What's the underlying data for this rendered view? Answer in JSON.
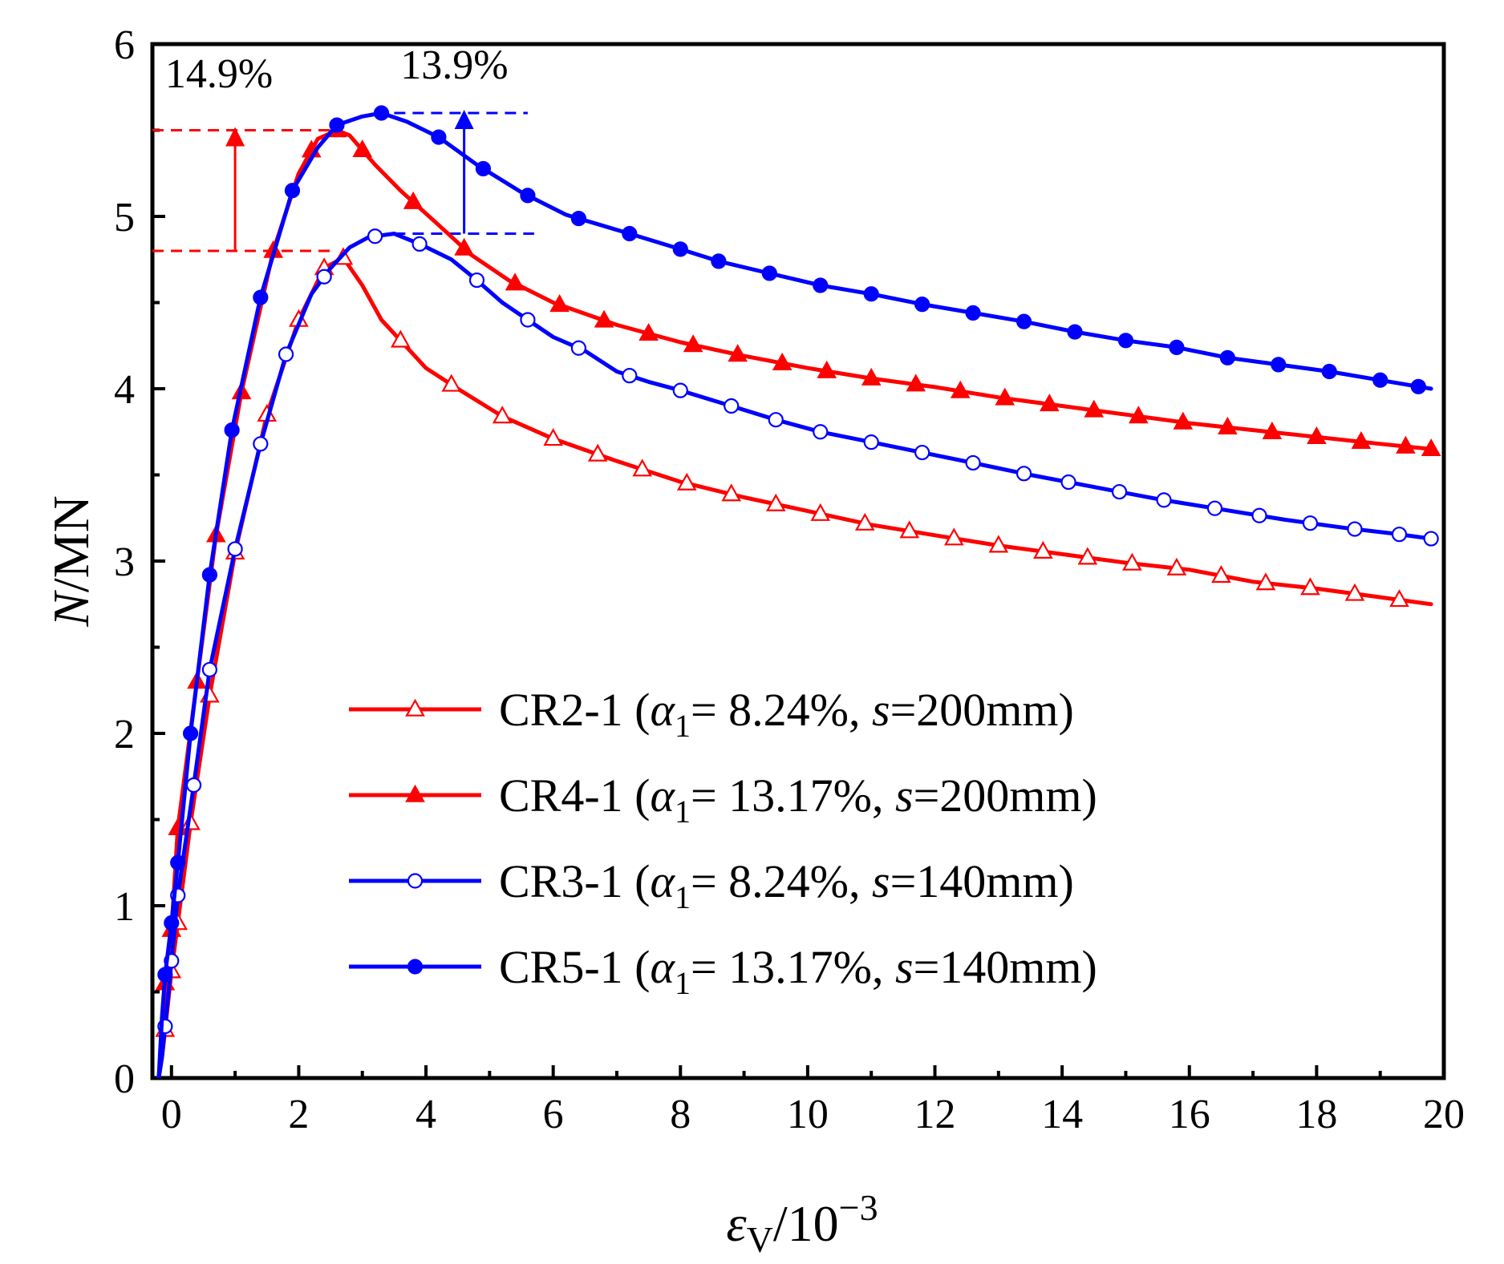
{
  "chart_data": {
    "type": "line",
    "title": "",
    "xlabel": {
      "symbol": "ε",
      "sub": "V",
      "rest": "/10",
      "sup": "−3"
    },
    "ylabel": {
      "symbol": "N",
      "rest": "/MN"
    },
    "xlim": [
      -0.3,
      20
    ],
    "ylim": [
      0,
      6
    ],
    "xticks": [
      0,
      2,
      4,
      6,
      8,
      10,
      12,
      14,
      16,
      18,
      20
    ],
    "yticks": [
      0,
      1,
      2,
      3,
      4,
      5,
      6
    ],
    "legend_position": "center-left",
    "series": [
      {
        "name": "CR2-1",
        "legend": {
          "id": "CR2-1",
          "alpha_val": "= 8.24%,",
          "s_val": "=200mm)"
        },
        "color": "#ff0000",
        "marker": "triangle",
        "filled": false,
        "points": [
          [
            -0.2,
            0
          ],
          [
            -0.15,
            0.12
          ],
          [
            -0.1,
            0.28
          ],
          [
            -0.05,
            0.45
          ],
          [
            0,
            0.62
          ],
          [
            0.1,
            0.9
          ],
          [
            0.3,
            1.48
          ],
          [
            0.6,
            2.22
          ],
          [
            1.0,
            3.05
          ],
          [
            1.5,
            3.85
          ],
          [
            2.0,
            4.4
          ],
          [
            2.4,
            4.7
          ],
          [
            2.7,
            4.76
          ],
          [
            3.0,
            4.6
          ],
          [
            3.3,
            4.4
          ],
          [
            3.6,
            4.28
          ],
          [
            4.0,
            4.12
          ],
          [
            4.5,
            4.0
          ],
          [
            5.2,
            3.84
          ],
          [
            6.0,
            3.71
          ],
          [
            7.0,
            3.58
          ],
          [
            8.0,
            3.46
          ],
          [
            9.0,
            3.37
          ],
          [
            10.0,
            3.29
          ],
          [
            11.0,
            3.21
          ],
          [
            12.0,
            3.15
          ],
          [
            13.0,
            3.09
          ],
          [
            14.0,
            3.04
          ],
          [
            15.0,
            2.99
          ],
          [
            16.0,
            2.95
          ],
          [
            17.0,
            2.88
          ],
          [
            18.0,
            2.84
          ],
          [
            19.0,
            2.79
          ],
          [
            19.8,
            2.75
          ]
        ],
        "markers_x": [
          -0.1,
          0,
          0.1,
          0.3,
          0.6,
          1.0,
          1.5,
          2.0,
          2.4,
          2.7,
          3.6,
          4.4,
          5.2,
          6.0,
          6.7,
          7.4,
          8.1,
          8.8,
          9.5,
          10.2,
          10.9,
          11.6,
          12.3,
          13.0,
          13.7,
          14.4,
          15.1,
          15.8,
          16.5,
          17.2,
          17.9,
          18.6,
          19.3
        ]
      },
      {
        "name": "CR4-1",
        "legend": {
          "id": "CR4-1",
          "alpha_val": "= 13.17%,",
          "s_val": "=200mm)"
        },
        "color": "#ff0000",
        "marker": "triangle",
        "filled": true,
        "points": [
          [
            -0.2,
            0
          ],
          [
            -0.15,
            0.25
          ],
          [
            -0.1,
            0.55
          ],
          [
            0,
            0.86
          ],
          [
            0.1,
            1.45
          ],
          [
            0.4,
            2.3
          ],
          [
            0.7,
            3.15
          ],
          [
            1.1,
            3.98
          ],
          [
            1.6,
            4.8
          ],
          [
            2.0,
            5.25
          ],
          [
            2.3,
            5.45
          ],
          [
            2.6,
            5.5
          ],
          [
            2.8,
            5.47
          ],
          [
            3.2,
            5.3
          ],
          [
            3.6,
            5.15
          ],
          [
            4.2,
            4.95
          ],
          [
            4.7,
            4.78
          ],
          [
            5.3,
            4.63
          ],
          [
            6.0,
            4.5
          ],
          [
            7.0,
            4.37
          ],
          [
            8.0,
            4.27
          ],
          [
            9.0,
            4.19
          ],
          [
            10.0,
            4.12
          ],
          [
            11.0,
            4.06
          ],
          [
            12.0,
            4.01
          ],
          [
            13.0,
            3.95
          ],
          [
            14.0,
            3.9
          ],
          [
            15.0,
            3.85
          ],
          [
            16.0,
            3.8
          ],
          [
            17.0,
            3.76
          ],
          [
            18.0,
            3.72
          ],
          [
            19.0,
            3.68
          ],
          [
            19.8,
            3.65
          ]
        ],
        "markers_x": [
          -0.1,
          0,
          0.1,
          0.4,
          0.7,
          1.1,
          1.6,
          2.2,
          2.6,
          3.0,
          3.8,
          4.6,
          5.4,
          6.1,
          6.8,
          7.5,
          8.2,
          8.9,
          9.6,
          10.3,
          11.0,
          11.7,
          12.4,
          13.1,
          13.8,
          14.5,
          15.2,
          15.9,
          16.6,
          17.3,
          18.0,
          18.7,
          19.4,
          19.8
        ]
      },
      {
        "name": "CR3-1",
        "legend": {
          "id": "CR3-1",
          "alpha_val": "= 8.24%,",
          "s_val": "=140mm)"
        },
        "color": "#0000ff",
        "marker": "circle",
        "filled": false,
        "points": [
          [
            -0.2,
            0
          ],
          [
            -0.15,
            0.12
          ],
          [
            -0.1,
            0.3
          ],
          [
            -0.05,
            0.48
          ],
          [
            0,
            0.68
          ],
          [
            0.1,
            1.06
          ],
          [
            0.35,
            1.7
          ],
          [
            0.6,
            2.37
          ],
          [
            1.0,
            3.07
          ],
          [
            1.4,
            3.68
          ],
          [
            1.8,
            4.2
          ],
          [
            2.2,
            4.55
          ],
          [
            2.5,
            4.7
          ],
          [
            2.8,
            4.82
          ],
          [
            3.1,
            4.88
          ],
          [
            3.5,
            4.9
          ],
          [
            3.9,
            4.84
          ],
          [
            4.4,
            4.75
          ],
          [
            4.8,
            4.63
          ],
          [
            5.2,
            4.5
          ],
          [
            5.6,
            4.4
          ],
          [
            6.0,
            4.3
          ],
          [
            6.5,
            4.22
          ],
          [
            7.0,
            4.1
          ],
          [
            7.5,
            4.04
          ],
          [
            8.0,
            3.99
          ],
          [
            8.8,
            3.9
          ],
          [
            9.5,
            3.82
          ],
          [
            10.2,
            3.75
          ],
          [
            11.0,
            3.69
          ],
          [
            11.8,
            3.63
          ],
          [
            12.6,
            3.57
          ],
          [
            13.5,
            3.5
          ],
          [
            14.5,
            3.43
          ],
          [
            15.5,
            3.36
          ],
          [
            16.5,
            3.3
          ],
          [
            17.5,
            3.24
          ],
          [
            18.5,
            3.19
          ],
          [
            19.2,
            3.16
          ],
          [
            19.8,
            3.13
          ]
        ],
        "markers_x": [
          -0.1,
          0,
          0.1,
          0.35,
          0.6,
          1.0,
          1.4,
          1.8,
          2.4,
          3.2,
          3.9,
          4.8,
          5.6,
          6.4,
          7.2,
          8.0,
          8.8,
          9.5,
          10.2,
          11.0,
          11.8,
          12.6,
          13.4,
          14.1,
          14.9,
          15.6,
          16.4,
          17.1,
          17.9,
          18.6,
          19.3,
          19.8
        ]
      },
      {
        "name": "CR5-1",
        "legend": {
          "id": "CR5-1",
          "alpha_val": "= 13.17%,",
          "s_val": "=140mm)"
        },
        "color": "#0000ff",
        "marker": "circle",
        "filled": true,
        "points": [
          [
            -0.2,
            0
          ],
          [
            -0.15,
            0.35
          ],
          [
            -0.1,
            0.6
          ],
          [
            0,
            0.9
          ],
          [
            0.1,
            1.25
          ],
          [
            0.3,
            2.0
          ],
          [
            0.6,
            2.92
          ],
          [
            0.95,
            3.76
          ],
          [
            1.4,
            4.53
          ],
          [
            1.9,
            5.15
          ],
          [
            2.3,
            5.4
          ],
          [
            2.6,
            5.53
          ],
          [
            3.0,
            5.58
          ],
          [
            3.3,
            5.6
          ],
          [
            3.7,
            5.55
          ],
          [
            4.2,
            5.46
          ],
          [
            4.8,
            5.3
          ],
          [
            5.5,
            5.14
          ],
          [
            6.2,
            5.01
          ],
          [
            7.2,
            4.9
          ],
          [
            8.0,
            4.81
          ],
          [
            8.6,
            4.74
          ],
          [
            9.4,
            4.67
          ],
          [
            10.2,
            4.6
          ],
          [
            11.0,
            4.55
          ],
          [
            11.8,
            4.49
          ],
          [
            12.6,
            4.44
          ],
          [
            13.4,
            4.39
          ],
          [
            14.2,
            4.33
          ],
          [
            15.0,
            4.28
          ],
          [
            15.8,
            4.24
          ],
          [
            16.6,
            4.18
          ],
          [
            17.4,
            4.14
          ],
          [
            18.2,
            4.1
          ],
          [
            19.0,
            4.05
          ],
          [
            19.8,
            4.0
          ]
        ],
        "markers_x": [
          -0.1,
          0,
          0.1,
          0.3,
          0.6,
          0.95,
          1.4,
          1.9,
          2.6,
          3.3,
          4.2,
          4.9,
          5.6,
          6.4,
          7.2,
          8.0,
          8.6,
          9.4,
          10.2,
          11.0,
          11.8,
          12.6,
          13.4,
          14.2,
          15.0,
          15.8,
          16.6,
          17.4,
          18.2,
          19.0,
          19.6
        ]
      }
    ],
    "annotations": [
      {
        "label": "14.9%",
        "color": "#ff0000",
        "x_range": [
          -0.3,
          2.5
        ],
        "arrow_x": 1.0,
        "from_y": 4.8,
        "to_y": 5.5,
        "text_x": -0.1,
        "text_y": 5.75
      },
      {
        "label": "13.9%",
        "color": "#0000ff",
        "x_range": [
          3.5,
          5.7
        ],
        "dash_top_x_start": 3.5,
        "dash_top_x_end": 5.6,
        "arrow_x": 4.6,
        "from_y": 4.9,
        "to_y": 5.6,
        "text_x": 3.6,
        "text_y": 5.8
      }
    ]
  }
}
